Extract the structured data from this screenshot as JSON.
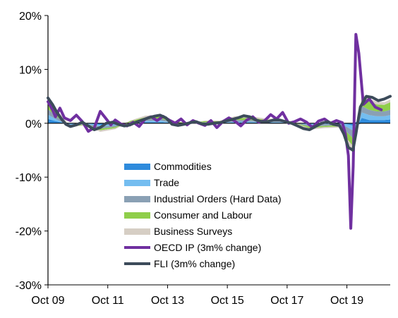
{
  "chart_data": {
    "type": "line",
    "title": "",
    "xlabel": "",
    "ylabel": "",
    "x_tick_labels": [
      "Oct 09",
      "Oct 11",
      "Oct 13",
      "Oct 15",
      "Oct 17",
      "Oct 19"
    ],
    "x_tick_values": [
      2009.75,
      2011.75,
      2013.75,
      2015.75,
      2017.75,
      2019.75
    ],
    "xlim": [
      2009.75,
      2021.2
    ],
    "y_tick_labels": [
      "20%",
      "10%",
      "0%",
      "-10%",
      "-20%",
      "-30%"
    ],
    "y_tick_values": [
      20,
      10,
      0,
      -10,
      -20,
      -30
    ],
    "ylim": [
      -30,
      20
    ],
    "grid": false,
    "legend_position": "bottom-center",
    "area_series": [
      {
        "name": "Commodities",
        "color": "#2e8bdc",
        "x": [
          2009.75,
          2010.0,
          2010.5,
          2011.0,
          2011.5,
          2012.0,
          2012.5,
          2013.0,
          2013.5,
          2014.0,
          2014.5,
          2015.0,
          2015.5,
          2016.0,
          2016.5,
          2017.0,
          2017.5,
          2018.0,
          2018.5,
          2019.0,
          2019.5,
          2019.75,
          2020.0,
          2020.25,
          2020.5,
          2020.75,
          2021.0,
          2021.2
        ],
        "values": [
          0.8,
          0.4,
          -0.1,
          0.0,
          -0.3,
          -0.2,
          0.0,
          0.2,
          0.2,
          0.0,
          0.0,
          0.0,
          0.0,
          0.1,
          0.1,
          0.1,
          0.1,
          0.0,
          -0.1,
          0.0,
          0.1,
          -0.2,
          -0.5,
          1.0,
          0.6,
          0.6,
          0.6,
          0.7
        ]
      },
      {
        "name": "Trade",
        "color": "#74bdf0",
        "x": [
          2009.75,
          2010.0,
          2010.5,
          2011.0,
          2011.5,
          2012.0,
          2012.5,
          2013.0,
          2013.5,
          2014.0,
          2014.5,
          2015.0,
          2015.5,
          2016.0,
          2016.5,
          2017.0,
          2017.5,
          2018.0,
          2018.5,
          2019.0,
          2019.5,
          2019.75,
          2020.0,
          2020.25,
          2020.5,
          2020.75,
          2021.0,
          2021.2
        ],
        "values": [
          0.8,
          0.4,
          -0.2,
          -0.1,
          -0.3,
          -0.2,
          0.1,
          0.2,
          0.3,
          0.0,
          0.0,
          0.1,
          0.1,
          0.2,
          0.2,
          0.1,
          0.1,
          0.0,
          -0.2,
          -0.2,
          -0.1,
          -0.5,
          -1.0,
          1.0,
          0.9,
          0.7,
          0.7,
          0.8
        ]
      },
      {
        "name": "Industrial Orders (Hard Data)",
        "color": "#8aa0b4",
        "x": [
          2009.75,
          2010.0,
          2010.5,
          2011.0,
          2011.5,
          2012.0,
          2012.5,
          2013.0,
          2013.5,
          2014.0,
          2014.5,
          2015.0,
          2015.5,
          2016.0,
          2016.5,
          2017.0,
          2017.5,
          2018.0,
          2018.5,
          2019.0,
          2019.5,
          2019.75,
          2020.0,
          2020.25,
          2020.5,
          2020.75,
          2021.0,
          2021.2
        ],
        "values": [
          1.0,
          0.6,
          -0.2,
          -0.1,
          -0.4,
          -0.3,
          0.1,
          0.3,
          0.4,
          0.1,
          0.0,
          0.1,
          0.1,
          0.3,
          0.3,
          0.2,
          0.2,
          0.0,
          -0.3,
          -0.3,
          -0.2,
          -1.0,
          -1.5,
          1.2,
          1.0,
          0.9,
          0.9,
          1.0
        ]
      },
      {
        "name": "Consumer and Labour",
        "color": "#8fce4a",
        "x": [
          2009.75,
          2010.0,
          2010.5,
          2011.0,
          2011.5,
          2012.0,
          2012.5,
          2013.0,
          2013.5,
          2014.0,
          2014.5,
          2015.0,
          2015.5,
          2016.0,
          2016.5,
          2017.0,
          2017.5,
          2018.0,
          2018.5,
          2019.0,
          2019.5,
          2019.75,
          2020.0,
          2020.25,
          2020.5,
          2020.75,
          2021.0,
          2021.2
        ],
        "values": [
          1.2,
          0.8,
          -0.1,
          -0.1,
          -0.3,
          -0.2,
          0.2,
          0.4,
          0.4,
          0.2,
          0.0,
          0.2,
          0.2,
          0.4,
          0.4,
          0.3,
          0.2,
          0.0,
          -0.3,
          -0.2,
          -0.3,
          -1.2,
          -1.5,
          1.5,
          1.5,
          1.3,
          1.2,
          1.4
        ]
      },
      {
        "name": "Business Surveys",
        "color": "#d6cec4",
        "x": [
          2009.75,
          2010.0,
          2010.5,
          2011.0,
          2011.5,
          2012.0,
          2012.5,
          2013.0,
          2013.5,
          2014.0,
          2014.5,
          2015.0,
          2015.5,
          2016.0,
          2016.5,
          2017.0,
          2017.5,
          2018.0,
          2018.5,
          2019.0,
          2019.5,
          2019.75,
          2020.0,
          2020.25,
          2020.5,
          2020.75,
          2021.0,
          2021.2
        ],
        "values": [
          1.0,
          0.6,
          -0.1,
          -0.1,
          -0.3,
          -0.2,
          0.1,
          0.3,
          0.3,
          0.1,
          0.0,
          0.1,
          0.1,
          0.3,
          0.3,
          0.2,
          0.2,
          0.0,
          -0.3,
          -0.2,
          -0.2,
          -1.0,
          -0.5,
          0.6,
          0.6,
          0.5,
          0.5,
          0.5
        ]
      }
    ],
    "line_series": [
      {
        "name": "OECD IP (3m% change)",
        "color": "#7030a0",
        "x": [
          2009.75,
          2009.9,
          2010.0,
          2010.15,
          2010.3,
          2010.5,
          2010.7,
          2010.9,
          2011.1,
          2011.3,
          2011.5,
          2011.7,
          2011.85,
          2012.0,
          2012.2,
          2012.4,
          2012.6,
          2012.8,
          2013.0,
          2013.2,
          2013.4,
          2013.6,
          2013.8,
          2014.0,
          2014.2,
          2014.4,
          2014.6,
          2014.8,
          2015.0,
          2015.2,
          2015.4,
          2015.6,
          2015.8,
          2016.0,
          2016.2,
          2016.4,
          2016.6,
          2016.8,
          2017.0,
          2017.2,
          2017.4,
          2017.6,
          2017.8,
          2018.0,
          2018.2,
          2018.4,
          2018.6,
          2018.8,
          2019.0,
          2019.2,
          2019.4,
          2019.6,
          2019.7,
          2019.8,
          2019.88,
          2019.96,
          2020.05,
          2020.15,
          2020.3,
          2020.5,
          2020.7,
          2020.9
        ],
        "values": [
          4.0,
          2.5,
          1.2,
          2.8,
          1.0,
          0.5,
          1.5,
          0.3,
          -1.5,
          -0.8,
          2.2,
          0.8,
          -0.3,
          0.6,
          -0.2,
          -0.5,
          0.2,
          -0.6,
          0.8,
          1.2,
          0.5,
          1.3,
          0.6,
          0.0,
          0.8,
          -0.3,
          0.5,
          0.0,
          -0.4,
          0.5,
          -0.8,
          0.3,
          1.0,
          0.4,
          -0.5,
          0.6,
          1.2,
          0.2,
          0.5,
          1.6,
          0.8,
          2.0,
          0.0,
          0.3,
          0.8,
          0.2,
          -0.8,
          0.4,
          0.8,
          0.0,
          0.5,
          0.1,
          -2.0,
          -6.0,
          -19.5,
          -8.0,
          16.5,
          13.0,
          3.5,
          4.5,
          3.0,
          2.5
        ]
      },
      {
        "name": "FLI (3m% change)",
        "color": "#3c4b5a",
        "x": [
          2009.75,
          2009.9,
          2010.05,
          2010.2,
          2010.35,
          2010.5,
          2010.7,
          2010.9,
          2011.1,
          2011.3,
          2011.5,
          2011.7,
          2011.9,
          2012.1,
          2012.3,
          2012.5,
          2012.7,
          2012.9,
          2013.1,
          2013.3,
          2013.5,
          2013.7,
          2013.9,
          2014.1,
          2014.3,
          2014.5,
          2014.7,
          2014.9,
          2015.1,
          2015.3,
          2015.5,
          2015.7,
          2015.9,
          2016.1,
          2016.3,
          2016.5,
          2016.7,
          2016.9,
          2017.1,
          2017.3,
          2017.5,
          2017.7,
          2017.9,
          2018.1,
          2018.3,
          2018.5,
          2018.7,
          2018.9,
          2019.1,
          2019.3,
          2019.5,
          2019.65,
          2019.8,
          2019.95,
          2020.05,
          2020.2,
          2020.4,
          2020.6,
          2020.8,
          2021.0,
          2021.2
        ],
        "values": [
          4.7,
          3.5,
          2.0,
          0.8,
          -0.2,
          -0.6,
          -0.3,
          0.2,
          -0.5,
          -1.2,
          -0.8,
          0.0,
          0.2,
          -0.2,
          -0.5,
          -0.3,
          0.2,
          0.6,
          1.0,
          1.3,
          1.5,
          1.0,
          -0.2,
          -0.4,
          -0.2,
          0.1,
          0.3,
          -0.1,
          -0.2,
          0.0,
          0.1,
          0.4,
          0.7,
          1.0,
          1.4,
          1.2,
          0.6,
          0.3,
          0.3,
          0.6,
          0.6,
          0.3,
          0.0,
          -0.5,
          -1.0,
          -1.2,
          -0.6,
          0.0,
          0.3,
          -0.2,
          -0.4,
          -2.0,
          -4.5,
          -5.0,
          -2.0,
          3.0,
          5.0,
          4.8,
          4.2,
          4.5,
          5.0
        ]
      }
    ]
  }
}
